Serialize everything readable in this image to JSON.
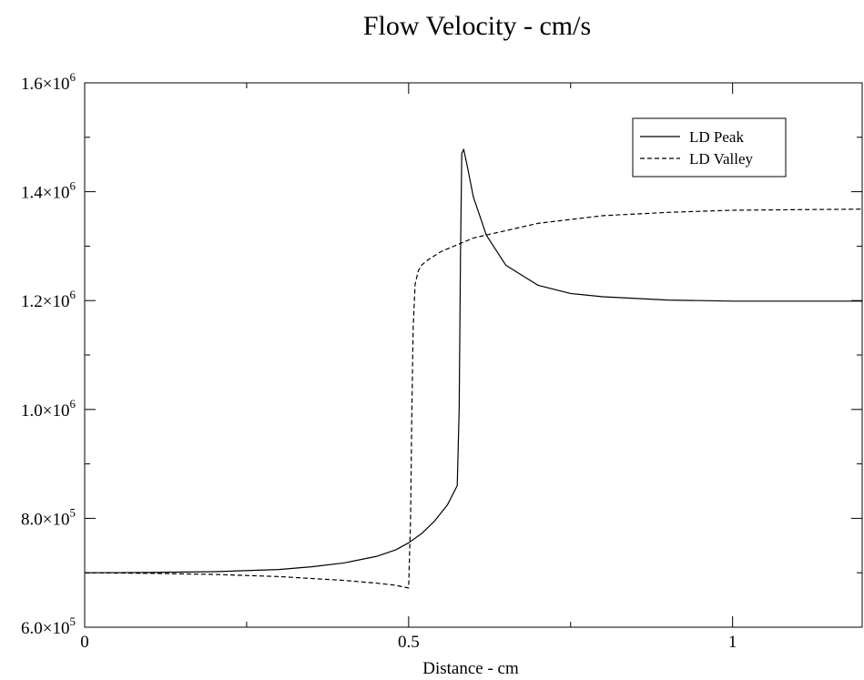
{
  "chart_data": {
    "type": "line",
    "title": "Flow Velocity - cm/s",
    "xlabel": "Distance - cm",
    "ylabel": "",
    "xlim": [
      0,
      1.2
    ],
    "ylim": [
      600000,
      1600000
    ],
    "x_ticks": [
      {
        "value": 0,
        "label": "0"
      },
      {
        "value": 0.5,
        "label": "0.5"
      },
      {
        "value": 1,
        "label": "1"
      }
    ],
    "y_ticks": [
      {
        "value": 600000,
        "mantissa": "6.0",
        "exp": "5"
      },
      {
        "value": 800000,
        "mantissa": "8.0",
        "exp": "5"
      },
      {
        "value": 1000000,
        "mantissa": "1.0",
        "exp": "6"
      },
      {
        "value": 1200000,
        "mantissa": "1.2",
        "exp": "6"
      },
      {
        "value": 1400000,
        "mantissa": "1.4",
        "exp": "6"
      },
      {
        "value": 1600000,
        "mantissa": "1.6",
        "exp": "6"
      }
    ],
    "x_minor_step": 0.25,
    "y_minor_step": 100000,
    "grid": false,
    "legend_position": "top-right",
    "series": [
      {
        "name": "LD Peak",
        "style": "solid",
        "color": "#000000",
        "x": [
          0,
          0.1,
          0.2,
          0.3,
          0.35,
          0.4,
          0.45,
          0.48,
          0.5,
          0.52,
          0.54,
          0.56,
          0.575,
          0.578,
          0.58,
          0.582,
          0.585,
          0.59,
          0.6,
          0.62,
          0.65,
          0.7,
          0.75,
          0.8,
          0.9,
          1.0,
          1.1,
          1.2
        ],
        "y": [
          700000,
          700500,
          702000,
          706000,
          711000,
          718000,
          730000,
          742000,
          755000,
          772000,
          795000,
          825000,
          860000,
          1000000,
          1280000,
          1470000,
          1478000,
          1450000,
          1390000,
          1320000,
          1265000,
          1228000,
          1213000,
          1207000,
          1201000,
          1199000,
          1199000,
          1199000
        ]
      },
      {
        "name": "LD Valley",
        "style": "dashed",
        "color": "#000000",
        "x": [
          0,
          0.1,
          0.2,
          0.3,
          0.4,
          0.45,
          0.48,
          0.5,
          0.503,
          0.505,
          0.507,
          0.51,
          0.515,
          0.52,
          0.53,
          0.55,
          0.6,
          0.7,
          0.8,
          0.9,
          1.0,
          1.1,
          1.2
        ],
        "y": [
          700000,
          699000,
          697000,
          693000,
          686000,
          681000,
          677000,
          672000,
          800000,
          1000000,
          1150000,
          1230000,
          1255000,
          1265000,
          1275000,
          1290000,
          1315000,
          1342000,
          1356000,
          1362000,
          1366000,
          1367000,
          1368000
        ]
      }
    ]
  }
}
